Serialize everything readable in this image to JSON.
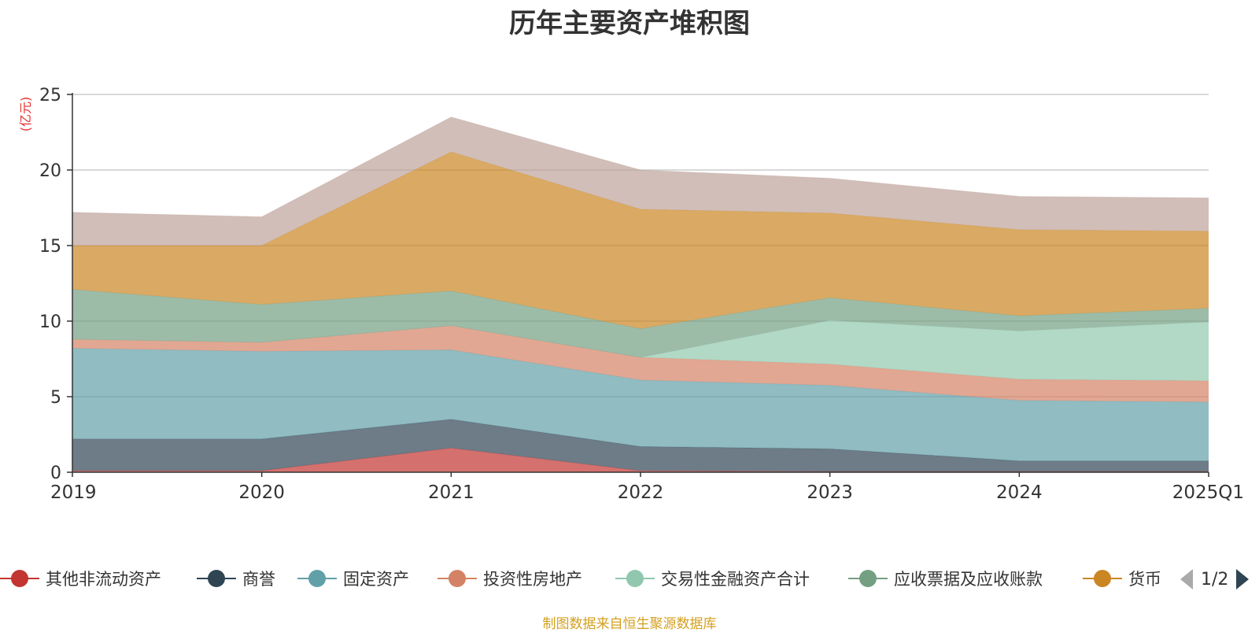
{
  "chart_data": {
    "type": "area",
    "stacked": true,
    "title": "历年主要资产堆积图",
    "ylabel": "(亿元)",
    "xlabel": "",
    "categories": [
      "2019",
      "2020",
      "2021",
      "2022",
      "2023",
      "2024",
      "2025Q1"
    ],
    "ylim": [
      0,
      25
    ],
    "yticks": [
      0,
      5,
      10,
      15,
      20,
      25
    ],
    "grid": true,
    "legend_position": "bottom",
    "series": [
      {
        "name": "其他非流动资产",
        "color": "#c23531",
        "values": [
          0.1,
          0.1,
          1.6,
          0.1,
          0.05,
          0.05,
          0.05
        ]
      },
      {
        "name": "商誉",
        "color": "#2f4554",
        "values": [
          2.1,
          2.1,
          1.9,
          1.6,
          1.5,
          0.7,
          0.7
        ]
      },
      {
        "name": "固定资产",
        "color": "#61a0a8",
        "values": [
          6.0,
          5.8,
          4.6,
          4.4,
          4.2,
          4.0,
          3.9
        ]
      },
      {
        "name": "投资性房地产",
        "color": "#d48265",
        "values": [
          0.6,
          0.6,
          1.6,
          1.5,
          1.4,
          1.4,
          1.4
        ]
      },
      {
        "name": "交易性金融资产合计",
        "color": "#91c7ae",
        "values": [
          0,
          0,
          0,
          0,
          2.9,
          3.2,
          3.9
        ]
      },
      {
        "name": "应收票据及应收账款",
        "color": "#749f83",
        "values": [
          3.3,
          2.5,
          2.3,
          1.9,
          1.5,
          1.0,
          0.9
        ]
      },
      {
        "name": "货币",
        "color": "#ca8622",
        "values": [
          2.9,
          3.9,
          9.2,
          7.9,
          5.6,
          5.7,
          5.1
        ]
      },
      {
        "name": "",
        "color": "#bda29a",
        "values": [
          2.2,
          1.9,
          2.3,
          2.6,
          2.3,
          2.2,
          2.2
        ]
      }
    ]
  },
  "legend": {
    "page_indicator": "1/2"
  },
  "source_note": "制图数据来自恒生聚源数据库"
}
